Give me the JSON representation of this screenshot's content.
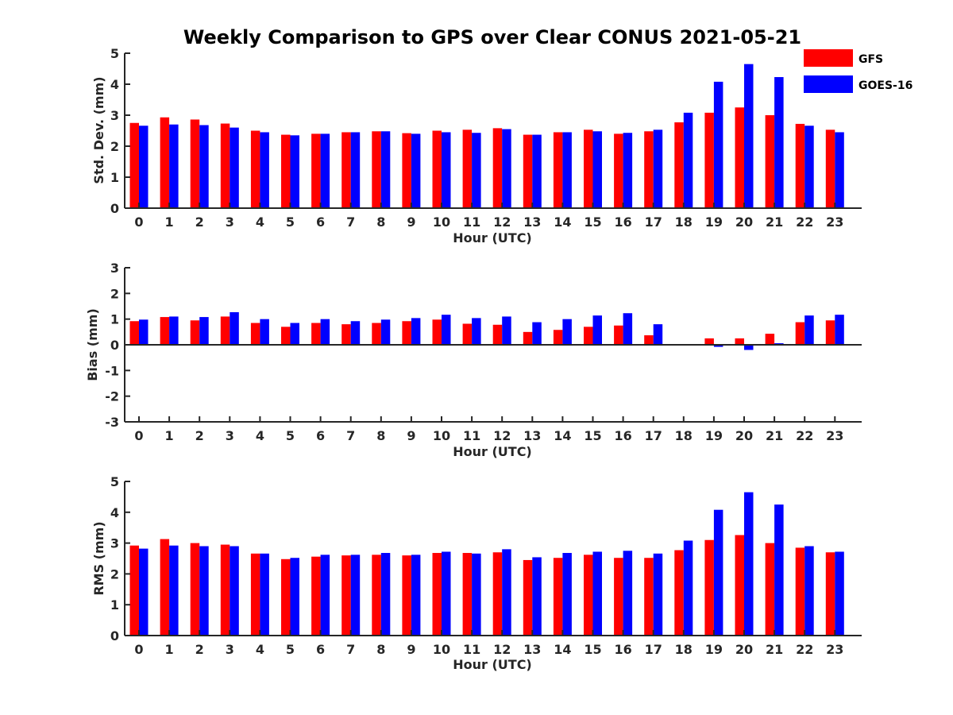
{
  "title": "Weekly Comparison to GPS over Clear CONUS 2021-05-21",
  "legend": [
    {
      "name": "GFS",
      "color": "#ff0000"
    },
    {
      "name": "GOES-16",
      "color": "#0000ff"
    }
  ],
  "chart_data": [
    {
      "type": "bar",
      "panel": "std-dev",
      "xlabel": "Hour (UTC)",
      "ylabel": "Std. Dev. (mm)",
      "ylim": [
        0,
        5
      ],
      "yticks": [
        0,
        1,
        2,
        3,
        4,
        5
      ],
      "categories": [
        "0",
        "1",
        "2",
        "3",
        "4",
        "5",
        "6",
        "7",
        "8",
        "9",
        "10",
        "11",
        "12",
        "13",
        "14",
        "15",
        "16",
        "17",
        "18",
        "19",
        "20",
        "21",
        "22",
        "23"
      ],
      "series": [
        {
          "name": "GFS",
          "color": "#ff0000",
          "values": [
            2.75,
            2.93,
            2.86,
            2.73,
            2.5,
            2.37,
            2.4,
            2.45,
            2.48,
            2.42,
            2.5,
            2.53,
            2.58,
            2.37,
            2.45,
            2.53,
            2.4,
            2.48,
            2.77,
            3.08,
            3.25,
            3.0,
            2.72,
            2.53
          ]
        },
        {
          "name": "GOES-16",
          "color": "#0000ff",
          "values": [
            2.66,
            2.7,
            2.68,
            2.6,
            2.45,
            2.35,
            2.4,
            2.45,
            2.48,
            2.4,
            2.45,
            2.43,
            2.55,
            2.37,
            2.45,
            2.48,
            2.43,
            2.53,
            3.08,
            4.08,
            4.65,
            4.23,
            2.66,
            2.45
          ]
        }
      ]
    },
    {
      "type": "bar",
      "panel": "bias",
      "xlabel": "Hour (UTC)",
      "ylabel": "Bias (mm)",
      "ylim": [
        -3,
        3
      ],
      "yticks": [
        -3,
        -2,
        -1,
        0,
        1,
        2,
        3
      ],
      "categories": [
        "0",
        "1",
        "2",
        "3",
        "4",
        "5",
        "6",
        "7",
        "8",
        "9",
        "10",
        "11",
        "12",
        "13",
        "14",
        "15",
        "16",
        "17",
        "18",
        "19",
        "20",
        "21",
        "22",
        "23"
      ],
      "series": [
        {
          "name": "GFS",
          "color": "#ff0000",
          "values": [
            0.92,
            1.08,
            0.95,
            1.1,
            0.85,
            0.7,
            0.85,
            0.8,
            0.85,
            0.92,
            0.98,
            0.82,
            0.78,
            0.5,
            0.58,
            0.7,
            0.75,
            0.37,
            -0.03,
            0.25,
            0.25,
            0.43,
            0.88,
            0.95
          ]
        },
        {
          "name": "GOES-16",
          "color": "#0000ff",
          "values": [
            0.98,
            1.1,
            1.08,
            1.27,
            1.0,
            0.85,
            1.0,
            0.92,
            0.98,
            1.04,
            1.17,
            1.04,
            1.1,
            0.88,
            1.0,
            1.14,
            1.23,
            0.8,
            0.0,
            -0.08,
            -0.2,
            0.06,
            1.14,
            1.17
          ]
        }
      ]
    },
    {
      "type": "bar",
      "panel": "rms",
      "xlabel": "Hour (UTC)",
      "ylabel": "RMS (mm)",
      "ylim": [
        0,
        5
      ],
      "yticks": [
        0,
        1,
        2,
        3,
        4,
        5
      ],
      "categories": [
        "0",
        "1",
        "2",
        "3",
        "4",
        "5",
        "6",
        "7",
        "8",
        "9",
        "10",
        "11",
        "12",
        "13",
        "14",
        "15",
        "16",
        "17",
        "18",
        "19",
        "20",
        "21",
        "22",
        "23"
      ],
      "series": [
        {
          "name": "GFS",
          "color": "#ff0000",
          "values": [
            2.92,
            3.13,
            3.0,
            2.95,
            2.66,
            2.48,
            2.56,
            2.6,
            2.62,
            2.6,
            2.68,
            2.68,
            2.7,
            2.45,
            2.52,
            2.62,
            2.52,
            2.52,
            2.77,
            3.1,
            3.26,
            3.0,
            2.85,
            2.7
          ]
        },
        {
          "name": "GOES-16",
          "color": "#0000ff",
          "values": [
            2.82,
            2.92,
            2.9,
            2.9,
            2.66,
            2.52,
            2.62,
            2.62,
            2.68,
            2.62,
            2.72,
            2.66,
            2.8,
            2.54,
            2.68,
            2.72,
            2.75,
            2.66,
            3.08,
            4.08,
            4.65,
            4.25,
            2.9,
            2.72
          ]
        }
      ]
    }
  ]
}
